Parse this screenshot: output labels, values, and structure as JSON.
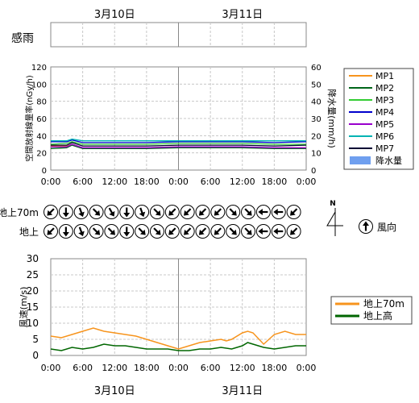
{
  "dates": [
    "3月10日",
    "3月11日"
  ],
  "rain_sense": {
    "label": "感雨"
  },
  "time_ticks": [
    "0:00",
    "6:00",
    "12:00",
    "18:00",
    "0:00",
    "6:00",
    "12:00",
    "18:00",
    "0:00"
  ],
  "wind_dir": {
    "row_labels": [
      "地上70m",
      "地上"
    ],
    "north_label": "N",
    "legend_label": "風向",
    "rows": [
      [
        225,
        180,
        160,
        135,
        150,
        180,
        160,
        135,
        225,
        225,
        225,
        225,
        135,
        135,
        270,
        270,
        225
      ],
      [
        225,
        180,
        160,
        135,
        135,
        180,
        135,
        135,
        225,
        225,
        225,
        225,
        135,
        135,
        270,
        270,
        225
      ]
    ]
  },
  "colors": {
    "MP1": "#f7941d",
    "MP2": "#00661a",
    "MP3": "#33cc33",
    "MP4": "#0000cc",
    "MP5": "#9900cc",
    "MP6": "#00b3b3",
    "MP7": "#000033",
    "rain": "#6f9fef",
    "wind70": "#f7941d",
    "wind": "#006600",
    "grid": "#c8c8c8"
  },
  "chart_data": [
    {
      "type": "line",
      "ylabel": "空間放射線量率(nGy/h)",
      "y2label": "降水量(mm/h)",
      "ylim": [
        0,
        120
      ],
      "y2lim": [
        0,
        60
      ],
      "yticks": [
        0,
        20,
        40,
        60,
        80,
        100,
        120
      ],
      "y2ticks": [
        0,
        10,
        20,
        30,
        40,
        50,
        60
      ],
      "xlim": [
        0,
        48
      ],
      "series": [
        {
          "name": "MP1",
          "x": [
            0,
            3,
            4,
            6,
            12,
            18,
            24,
            30,
            36,
            42,
            48
          ],
          "values": [
            28,
            28,
            30,
            26,
            26,
            26,
            27,
            27,
            26,
            26,
            26
          ]
        },
        {
          "name": "MP2",
          "x": [
            0,
            3,
            4,
            6,
            12,
            18,
            24,
            30,
            36,
            42,
            48
          ],
          "values": [
            25,
            26,
            29,
            25,
            25,
            25,
            26,
            26,
            26,
            25,
            25
          ]
        },
        {
          "name": "MP3",
          "x": [
            0,
            3,
            4,
            6,
            12,
            18,
            24,
            30,
            36,
            42,
            48
          ],
          "values": [
            30,
            31,
            33,
            30,
            30,
            30,
            31,
            31,
            31,
            30,
            30
          ]
        },
        {
          "name": "MP4",
          "x": [
            0,
            3,
            4,
            6,
            12,
            18,
            24,
            30,
            36,
            42,
            48
          ],
          "values": [
            33,
            33,
            35,
            32,
            32,
            32,
            33,
            33,
            33,
            32,
            33
          ]
        },
        {
          "name": "MP5",
          "x": [
            0,
            3,
            4,
            6,
            12,
            18,
            24,
            30,
            36,
            42,
            48
          ],
          "values": [
            27,
            27,
            30,
            26,
            26,
            26,
            27,
            27,
            27,
            26,
            26
          ]
        },
        {
          "name": "MP6",
          "x": [
            0,
            3,
            4,
            6,
            12,
            18,
            24,
            30,
            36,
            42,
            48
          ],
          "values": [
            34,
            34,
            36,
            34,
            34,
            34,
            34,
            34,
            34,
            34,
            34
          ]
        },
        {
          "name": "MP7",
          "x": [
            0,
            3,
            4,
            6,
            12,
            18,
            24,
            30,
            36,
            42,
            48
          ],
          "values": [
            29,
            29,
            32,
            28,
            28,
            28,
            29,
            29,
            29,
            28,
            29
          ]
        },
        {
          "name": "降水量",
          "x": [],
          "values": []
        }
      ]
    },
    {
      "type": "line",
      "ylabel": "風速(m/s)",
      "ylim": [
        0,
        30
      ],
      "yticks": [
        0,
        5,
        10,
        15,
        20,
        25,
        30
      ],
      "xlim": [
        0,
        48
      ],
      "series": [
        {
          "name": "地上70m",
          "x": [
            0,
            2,
            4,
            6,
            8,
            9,
            10,
            12,
            14,
            16,
            18,
            20,
            22,
            24,
            26,
            28,
            30,
            32,
            33,
            34,
            36,
            37,
            38,
            40,
            42,
            44,
            46,
            48
          ],
          "values": [
            6,
            5.5,
            6.5,
            7.5,
            8.5,
            8,
            7.5,
            7,
            6.5,
            6,
            5,
            4,
            3,
            2,
            3,
            4,
            4.5,
            5,
            4.5,
            5,
            7,
            7.5,
            7,
            3.5,
            6.5,
            7.5,
            6.5,
            6.5
          ]
        },
        {
          "name": "地上高",
          "x": [
            0,
            2,
            4,
            6,
            8,
            10,
            12,
            14,
            16,
            18,
            20,
            22,
            24,
            26,
            28,
            30,
            32,
            34,
            36,
            37,
            38,
            40,
            42,
            44,
            46,
            48
          ],
          "values": [
            2,
            1.5,
            2.5,
            2,
            2.5,
            3.5,
            3,
            3,
            2.5,
            2,
            2,
            2,
            1.5,
            1.5,
            2,
            2,
            2.5,
            2,
            3,
            4,
            3.5,
            2.5,
            2,
            2.5,
            3,
            3
          ]
        }
      ]
    }
  ]
}
